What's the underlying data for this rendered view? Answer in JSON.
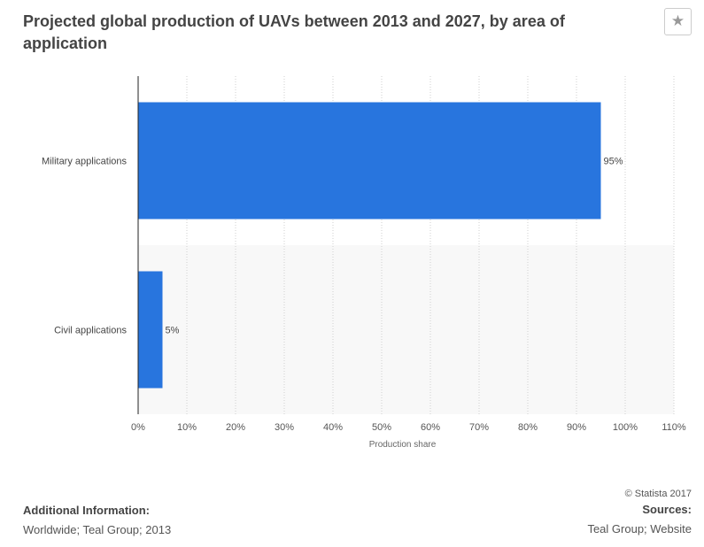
{
  "header": {
    "title": "Projected global production of UAVs between 2013 and 2027, by area of application",
    "star_icon": "star-icon"
  },
  "chart_data": {
    "type": "bar",
    "orientation": "horizontal",
    "categories": [
      "Military applications",
      "Civil applications"
    ],
    "values": [
      95,
      5
    ],
    "value_labels": [
      "95%",
      "5%"
    ],
    "xlabel": "Production share",
    "ylabel": "",
    "xlim": [
      0,
      110
    ],
    "x_ticks": [
      "0%",
      "10%",
      "20%",
      "30%",
      "40%",
      "50%",
      "60%",
      "70%",
      "80%",
      "90%",
      "100%",
      "110%"
    ],
    "grid": true,
    "bar_color": "#2875de"
  },
  "footer": {
    "copyright": "© Statista 2017",
    "additional_info_heading": "Additional Information:",
    "additional_info_text": "Worldwide; Teal Group; 2013",
    "sources_heading": "Sources:",
    "sources_text": "Teal Group; Website"
  }
}
